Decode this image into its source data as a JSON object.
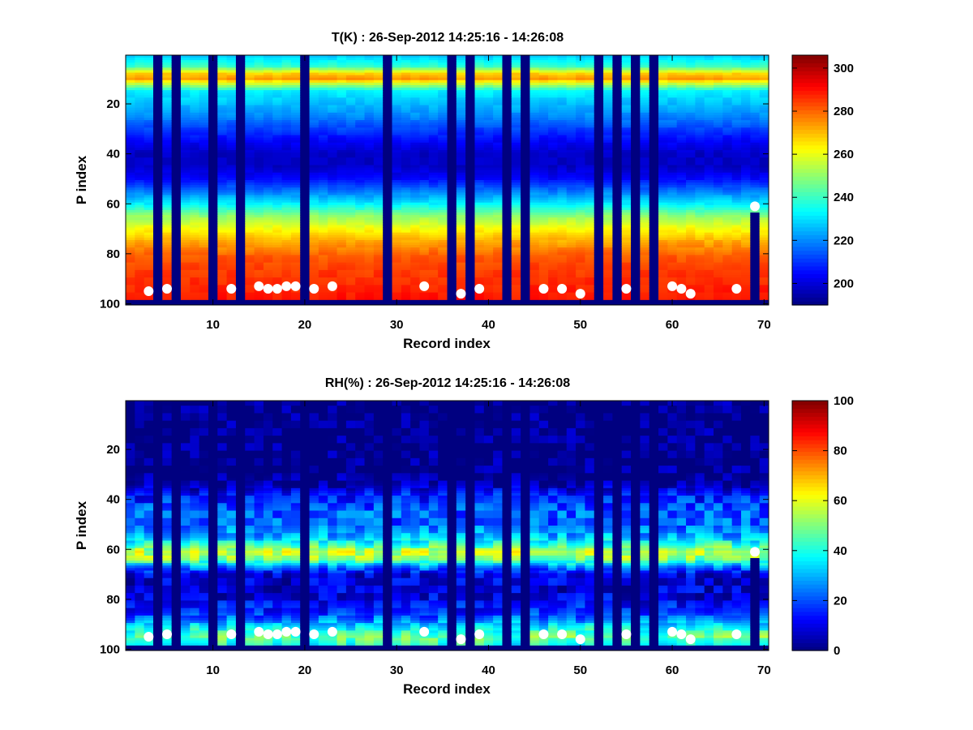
{
  "figure": {
    "colormap": "jet",
    "background": "#ffffff",
    "marker_color": "#ffffff"
  },
  "chart_data": [
    {
      "type": "heatmap",
      "title": "T(K) : 26-Sep-2012 14:25:16 - 14:26:08",
      "xlabel": "Record index",
      "ylabel": "P index",
      "xlim": [
        0.5,
        70.5
      ],
      "ylim": [
        100.5,
        0.5
      ],
      "y_reversed": true,
      "x_ticks": [
        10,
        20,
        30,
        40,
        50,
        60,
        70
      ],
      "y_ticks": [
        20,
        40,
        60,
        80,
        100
      ],
      "colorbar": {
        "range": [
          190,
          306
        ],
        "ticks": [
          200,
          220,
          240,
          260,
          280,
          300
        ]
      },
      "gap_records": [
        4,
        6,
        10,
        13,
        20,
        29,
        36,
        38,
        42,
        44,
        52,
        54,
        56,
        58
      ],
      "partial_profile": {
        "record": 69,
        "valid_from_p": 64
      },
      "surface_p": 98,
      "profile_p": [
        1,
        5,
        8,
        10,
        12,
        15,
        20,
        25,
        30,
        35,
        40,
        45,
        50,
        55,
        60,
        65,
        70,
        75,
        80,
        85,
        90,
        95,
        98
      ],
      "profile_values": [
        228,
        240,
        268,
        274,
        256,
        232,
        226,
        220,
        212,
        204,
        198,
        198,
        205,
        218,
        232,
        250,
        262,
        272,
        280,
        284,
        286,
        288,
        289
      ],
      "markers": [
        {
          "record": 3,
          "p": 95
        },
        {
          "record": 5,
          "p": 94
        },
        {
          "record": 12,
          "p": 94
        },
        {
          "record": 15,
          "p": 93
        },
        {
          "record": 16,
          "p": 94
        },
        {
          "record": 17,
          "p": 94
        },
        {
          "record": 18,
          "p": 93
        },
        {
          "record": 19,
          "p": 93
        },
        {
          "record": 21,
          "p": 94
        },
        {
          "record": 23,
          "p": 93
        },
        {
          "record": 33,
          "p": 93
        },
        {
          "record": 37,
          "p": 96
        },
        {
          "record": 39,
          "p": 94
        },
        {
          "record": 46,
          "p": 94
        },
        {
          "record": 48,
          "p": 94
        },
        {
          "record": 50,
          "p": 96
        },
        {
          "record": 55,
          "p": 94
        },
        {
          "record": 60,
          "p": 93
        },
        {
          "record": 61,
          "p": 94
        },
        {
          "record": 62,
          "p": 96
        },
        {
          "record": 67,
          "p": 94
        },
        {
          "record": 69,
          "p": 61
        }
      ]
    },
    {
      "type": "heatmap",
      "title": "RH(%) : 26-Sep-2012 14:25:16 - 14:26:08",
      "xlabel": "Record index",
      "ylabel": "P index",
      "xlim": [
        0.5,
        70.5
      ],
      "ylim": [
        100.5,
        0.5
      ],
      "y_reversed": true,
      "x_ticks": [
        10,
        20,
        30,
        40,
        50,
        60,
        70
      ],
      "y_ticks": [
        20,
        40,
        60,
        80,
        100
      ],
      "colorbar": {
        "range": [
          0,
          100
        ],
        "ticks": [
          0,
          20,
          40,
          60,
          80,
          100
        ]
      },
      "gap_records": [
        4,
        6,
        10,
        13,
        20,
        29,
        36,
        38,
        42,
        44,
        52,
        54,
        56,
        58
      ],
      "partial_profile": {
        "record": 69,
        "valid_from_p": 64
      },
      "surface_p": 98,
      "profile_p": [
        1,
        30,
        34,
        38,
        45,
        50,
        55,
        58,
        61,
        64,
        67,
        70,
        75,
        80,
        85,
        88,
        91,
        95,
        98
      ],
      "profile_values": [
        0,
        0,
        3,
        14,
        22,
        22,
        30,
        42,
        57,
        50,
        26,
        10,
        8,
        10,
        16,
        24,
        36,
        48,
        40
      ],
      "markers": [
        {
          "record": 3,
          "p": 95
        },
        {
          "record": 5,
          "p": 94
        },
        {
          "record": 12,
          "p": 94
        },
        {
          "record": 15,
          "p": 93
        },
        {
          "record": 16,
          "p": 94
        },
        {
          "record": 17,
          "p": 94
        },
        {
          "record": 18,
          "p": 93
        },
        {
          "record": 19,
          "p": 93
        },
        {
          "record": 21,
          "p": 94
        },
        {
          "record": 23,
          "p": 93
        },
        {
          "record": 33,
          "p": 93
        },
        {
          "record": 37,
          "p": 96
        },
        {
          "record": 39,
          "p": 94
        },
        {
          "record": 46,
          "p": 94
        },
        {
          "record": 48,
          "p": 94
        },
        {
          "record": 50,
          "p": 96
        },
        {
          "record": 55,
          "p": 94
        },
        {
          "record": 60,
          "p": 93
        },
        {
          "record": 61,
          "p": 94
        },
        {
          "record": 62,
          "p": 96
        },
        {
          "record": 67,
          "p": 94
        },
        {
          "record": 69,
          "p": 61
        }
      ]
    }
  ]
}
